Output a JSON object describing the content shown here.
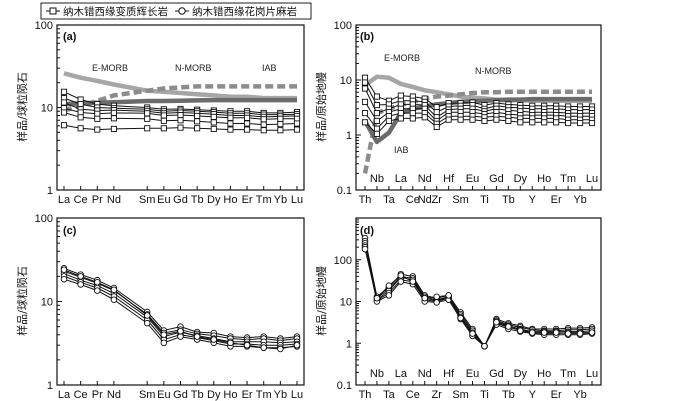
{
  "legend": {
    "items": [
      {
        "label": "纳木错西缘变质辉长岩",
        "marker": "square"
      },
      {
        "label": "纳木错西缘花岗片麻岩",
        "marker": "circle"
      }
    ]
  },
  "colors": {
    "samples": "#111111",
    "E-MORB": "#a6a6a6",
    "N-MORB": "#8c8c8c",
    "IAB": "#6b6b6b",
    "axes": "#111111"
  },
  "chart_data": [
    {
      "panel": "(a)",
      "type": "line",
      "ylabel": "样品/球粒陨石",
      "yscale": "log",
      "ylim": [
        1,
        100
      ],
      "yticks": [
        "1",
        "10",
        "100"
      ],
      "categories": [
        "La",
        "Ce",
        "Pr",
        "Nd",
        "Sm",
        "Eu",
        "Gd",
        "Tb",
        "Dy",
        "Ho",
        "Er",
        "Tm",
        "Yb",
        "Lu"
      ],
      "x": [
        0,
        1,
        2,
        3,
        5,
        6,
        7,
        8,
        9,
        10,
        11,
        12,
        13,
        14
      ],
      "reference": [
        {
          "name": "E-MORB",
          "style": "solid-light",
          "values": [
            26,
            23,
            21,
            19,
            16,
            15.5,
            15,
            14.5,
            14,
            13.5,
            13.5,
            13,
            13,
            13
          ]
        },
        {
          "name": "N-MORB",
          "style": "dashed",
          "values": [
            9.2,
            10.5,
            12,
            14,
            16,
            17,
            17.5,
            18,
            18,
            18,
            18,
            18,
            18,
            18
          ]
        },
        {
          "name": "IAB",
          "style": "solid-dark",
          "values": [
            11,
            11.2,
            11.4,
            11.6,
            12,
            12,
            12.1,
            12.2,
            12.3,
            12.3,
            12.3,
            12.3,
            12.3,
            12.3
          ]
        }
      ],
      "series_marker": "square",
      "series": [
        {
          "name": "s1",
          "values": [
            15.5,
            12.5,
            11,
            10.5,
            10,
            9.5,
            9.6,
            9.4,
            9.2,
            9.0,
            9.0,
            8.6,
            8.6,
            8.8
          ]
        },
        {
          "name": "s2",
          "values": [
            13,
            11,
            10,
            9.8,
            9.5,
            9.0,
            9.2,
            9.0,
            8.8,
            8.5,
            8.5,
            8.2,
            8.2,
            8.3
          ]
        },
        {
          "name": "s3",
          "values": [
            11.5,
            9.5,
            9.2,
            9.3,
            9.0,
            8.5,
            8.7,
            8.5,
            8.3,
            8.0,
            8.0,
            7.7,
            7.8,
            7.9
          ]
        },
        {
          "name": "s4",
          "values": [
            9.8,
            8.7,
            8.4,
            8.6,
            8.5,
            8.0,
            8.1,
            7.9,
            7.7,
            7.5,
            7.5,
            7.2,
            7.3,
            7.3
          ]
        },
        {
          "name": "s5",
          "values": [
            8.7,
            7.6,
            7.3,
            7.4,
            7.3,
            6.9,
            7.0,
            6.8,
            6.6,
            6.4,
            6.4,
            6.2,
            6.3,
            6.4
          ]
        },
        {
          "name": "s6",
          "values": [
            6.1,
            5.6,
            5.4,
            5.5,
            5.6,
            5.6,
            5.7,
            5.6,
            5.5,
            5.4,
            5.4,
            5.3,
            5.3,
            5.4
          ]
        }
      ]
    },
    {
      "panel": "(b)",
      "type": "line",
      "ylabel": "样品/原始地幔",
      "yscale": "log",
      "ylim": [
        0.1,
        100
      ],
      "yticks": [
        "0.1",
        "1",
        "10",
        "100"
      ],
      "categories": [
        "Th",
        "Nb",
        "Ta",
        "La",
        "Ce",
        "Nd",
        "Zr",
        "Hf",
        "Sm",
        "Eu",
        "Ti",
        "Gd",
        "Tb",
        "Dy",
        "Y",
        "Ho",
        "Er",
        "Tm",
        "Yb",
        "Lu"
      ],
      "xticks_row1": [
        "Th",
        "Ta",
        "Ce",
        "Nd",
        "Zr",
        "Sm",
        "Ti",
        "Tb",
        "Y",
        "Er",
        "Yb"
      ],
      "xticks_row2": [
        "Nb",
        "La",
        "Nd",
        "Hf",
        "Eu",
        "Gd",
        "Dy",
        "Ho",
        "Tm",
        "Lu"
      ],
      "reference": [
        {
          "name": "E-MORB",
          "style": "solid-light",
          "values": [
            8,
            11.5,
            11,
            8.5,
            7.5,
            6.5,
            6.0,
            5.5,
            5.0,
            4.8,
            4.6,
            4.4,
            4.3,
            4.3,
            4.2,
            4.2,
            4.2,
            4.2,
            4.2,
            4.2
          ]
        },
        {
          "name": "N-MORB",
          "style": "dashed",
          "values": [
            0.2,
            2.5,
            3.0,
            3.5,
            4.0,
            4.5,
            5.0,
            5.2,
            5.5,
            5.8,
            6.0,
            6.0,
            6.1,
            6.1,
            6.1,
            6.1,
            6.1,
            6.1,
            6.1,
            6.1
          ]
        },
        {
          "name": "IAB",
          "style": "solid-dark",
          "values": [
            1.8,
            0.75,
            1.1,
            2.5,
            3.0,
            3.3,
            3.6,
            3.8,
            4.0,
            4.1,
            4.2,
            4.3,
            4.4,
            4.4,
            4.5,
            4.5,
            4.5,
            4.5,
            4.5,
            4.5
          ]
        }
      ],
      "series_marker": "square",
      "series": [
        {
          "name": "s1",
          "values": [
            11,
            5,
            4.2,
            5.2,
            5.0,
            4.6,
            3.2,
            3.8,
            3.8,
            3.9,
            3.5,
            3.8,
            3.6,
            3.5,
            3.4,
            3.4,
            3.4,
            3.3,
            3.3,
            3.3
          ]
        },
        {
          "name": "s2",
          "values": [
            9,
            3.5,
            3.6,
            4.2,
            4.2,
            4.0,
            2.6,
            3.3,
            3.4,
            3.5,
            3.0,
            3.4,
            3.2,
            3.1,
            3.0,
            3.0,
            3.0,
            2.9,
            2.9,
            2.9
          ]
        },
        {
          "name": "s3",
          "values": [
            7,
            2.5,
            3.0,
            3.6,
            3.6,
            3.5,
            2.1,
            2.9,
            3.0,
            3.0,
            2.7,
            3.0,
            2.8,
            2.7,
            2.6,
            2.6,
            2.6,
            2.5,
            2.5,
            2.5
          ]
        },
        {
          "name": "s4",
          "values": [
            4,
            1.8,
            2.6,
            3.0,
            3.0,
            3.0,
            1.8,
            2.6,
            2.6,
            2.6,
            2.4,
            2.6,
            2.4,
            2.3,
            2.3,
            2.3,
            2.3,
            2.2,
            2.2,
            2.2
          ]
        },
        {
          "name": "s5",
          "values": [
            2.5,
            1.3,
            2.2,
            2.5,
            2.5,
            2.5,
            1.6,
            2.2,
            2.2,
            2.2,
            2.1,
            2.2,
            2.1,
            2.0,
            2.0,
            2.0,
            2.0,
            1.9,
            1.9,
            1.9
          ]
        },
        {
          "name": "s6",
          "values": [
            1.7,
            1.05,
            1.8,
            2.0,
            2.0,
            2.1,
            1.4,
            1.9,
            1.9,
            1.9,
            1.8,
            1.9,
            1.8,
            1.7,
            1.7,
            1.7,
            1.7,
            1.65,
            1.65,
            1.65
          ]
        }
      ]
    },
    {
      "panel": "(c)",
      "type": "line",
      "ylabel": "样品/球粒陨石",
      "yscale": "log",
      "ylim": [
        1,
        100
      ],
      "yticks": [
        "1",
        "10",
        "100"
      ],
      "categories": [
        "La",
        "Ce",
        "Pr",
        "Nd",
        "Sm",
        "Eu",
        "Gd",
        "Tb",
        "Dy",
        "Ho",
        "Er",
        "Tm",
        "Yb",
        "Lu"
      ],
      "x": [
        0,
        1,
        2,
        3,
        5,
        6,
        7,
        8,
        9,
        10,
        11,
        12,
        13,
        14
      ],
      "series_marker": "circle",
      "series": [
        {
          "name": "g1",
          "values": [
            25,
            21,
            18,
            14.5,
            7.5,
            4.5,
            5.0,
            4.3,
            4.2,
            3.8,
            3.7,
            3.8,
            3.6,
            3.8
          ]
        },
        {
          "name": "g2",
          "values": [
            23,
            19.5,
            16.5,
            13.5,
            7.0,
            4.2,
            4.6,
            4.1,
            3.9,
            3.6,
            3.5,
            3.6,
            3.4,
            3.6
          ]
        },
        {
          "name": "g3",
          "values": [
            21.5,
            18,
            15.5,
            12.5,
            6.5,
            3.8,
            4.3,
            3.9,
            3.6,
            3.3,
            3.3,
            3.3,
            3.2,
            3.3
          ]
        },
        {
          "name": "g4",
          "values": [
            20,
            17,
            14.5,
            11.5,
            6.0,
            3.5,
            4.0,
            3.7,
            3.4,
            3.1,
            3.1,
            3.0,
            3.0,
            3.1
          ]
        },
        {
          "name": "g5",
          "values": [
            18.5,
            16,
            13.5,
            10.5,
            5.5,
            3.2,
            3.8,
            3.5,
            3.2,
            2.9,
            2.9,
            2.8,
            2.8,
            2.9
          ]
        },
        {
          "name": "g6",
          "values": [
            24,
            20,
            17,
            13.8,
            6.8,
            4.0,
            4.4,
            3.8,
            3.5,
            3.2,
            3.0,
            2.8,
            2.7,
            3.0
          ]
        }
      ]
    },
    {
      "panel": "(d)",
      "type": "line",
      "ylabel": "样品/原始地幔",
      "yscale": "log",
      "ylim": [
        0.1,
        1000
      ],
      "yticks": [
        "0.1",
        "1",
        "10",
        "100"
      ],
      "categories": [
        "Th",
        "Nb",
        "Ta",
        "La",
        "Ce",
        "Nd",
        "Zr",
        "Hf",
        "Sm",
        "Eu",
        "Ti",
        "Gd",
        "Tb",
        "Dy",
        "Y",
        "Ho",
        "Er",
        "Tm",
        "Yb",
        "Lu"
      ],
      "xticks_row1": [
        "Th",
        "Ta",
        "Ce",
        "Zr",
        "Sm",
        "Ti",
        "Tb",
        "Y",
        "Er",
        "Yb"
      ],
      "xticks_row2": [
        "Nb",
        "La",
        "Nd",
        "Hf",
        "Eu",
        "Gd",
        "Dy",
        "Ho",
        "Tm",
        "Lu"
      ],
      "series_marker": "circle",
      "series": [
        {
          "name": "g1",
          "values": [
            330,
            13,
            22,
            45,
            40,
            14,
            12,
            14,
            5.5,
            2.2,
            0.85,
            3.8,
            3.0,
            2.6,
            2.2,
            2.2,
            2.2,
            2.3,
            2.3,
            2.4
          ]
        },
        {
          "name": "g2",
          "values": [
            280,
            12,
            20,
            40,
            36,
            13,
            11,
            13,
            5.0,
            2.0,
            0.85,
            3.5,
            2.8,
            2.4,
            2.1,
            2.0,
            2.0,
            2.1,
            2.1,
            2.2
          ]
        },
        {
          "name": "g3",
          "values": [
            250,
            11,
            18,
            38,
            33,
            12,
            10.5,
            12.5,
            4.6,
            1.8,
            0.85,
            3.3,
            2.6,
            2.2,
            1.9,
            1.9,
            1.9,
            1.9,
            1.9,
            2.0
          ]
        },
        {
          "name": "g4",
          "values": [
            220,
            10.5,
            16,
            33,
            30,
            11,
            10,
            12,
            4.2,
            1.6,
            0.85,
            3.0,
            2.4,
            2.1,
            1.8,
            1.7,
            1.7,
            1.8,
            1.8,
            1.8
          ]
        },
        {
          "name": "g5",
          "values": [
            200,
            10,
            14,
            30,
            26,
            10,
            9.5,
            11,
            3.8,
            1.5,
            0.85,
            2.8,
            2.2,
            1.9,
            1.7,
            1.6,
            1.6,
            1.6,
            1.6,
            1.7
          ]
        },
        {
          "name": "g6",
          "values": [
            180,
            12,
            24,
            42,
            30,
            12,
            13,
            14,
            4.0,
            1.7,
            0.85,
            3.2,
            2.5,
            2.0,
            1.8,
            1.8,
            1.8,
            1.7,
            1.7,
            1.8
          ]
        }
      ]
    }
  ]
}
